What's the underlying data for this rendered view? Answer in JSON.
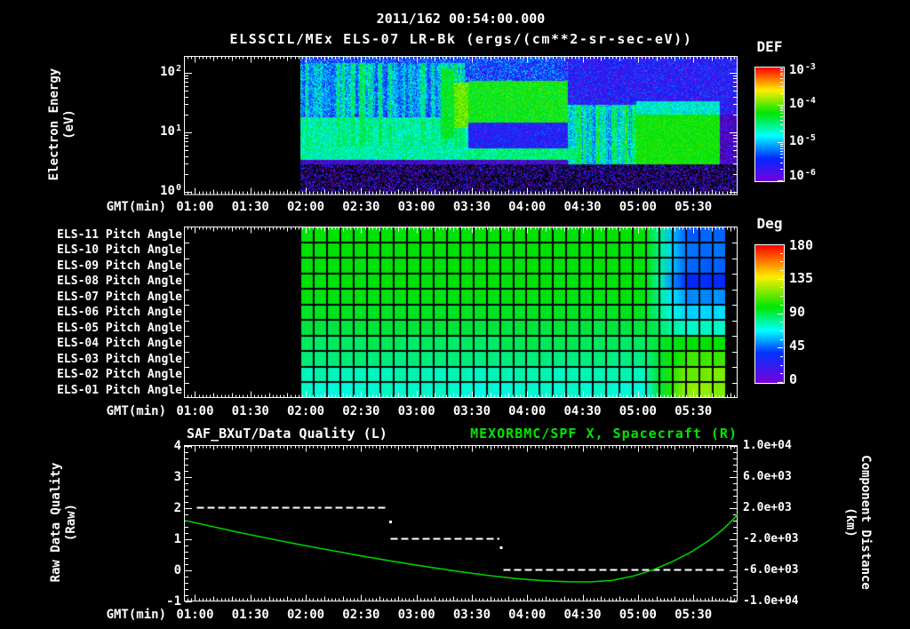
{
  "header": {
    "title_datetime": "2011/162 00:54:00.000",
    "title_instrument": "ELSSCIL/MEx ELS-07 LR-Bk  (ergs/(cm**2-sr-sec-eV))"
  },
  "time_axis": {
    "label": "GMT(min)",
    "start_minute": 54,
    "end_minute": 354,
    "tick_minutes": [
      60,
      90,
      120,
      150,
      180,
      210,
      240,
      270,
      300,
      330
    ],
    "tick_labels": [
      "01:00",
      "01:30",
      "02:00",
      "02:30",
      "03:00",
      "03:30",
      "04:00",
      "04:30",
      "05:00",
      "05:30"
    ]
  },
  "colors": {
    "background": "#000000",
    "foreground": "#ffffff",
    "series_green": "#00cc00",
    "title_green": "#00e600"
  },
  "chart_data": [
    {
      "type": "heatmap",
      "name": "electron-energy-spectrogram",
      "ylabel": "Electron Energy",
      "ylabel_units": "(eV)",
      "yscale": "log",
      "yticks": [
        {
          "base": "10",
          "exp": "2"
        },
        {
          "base": "10",
          "exp": "1"
        },
        {
          "base": "10",
          "exp": "0"
        }
      ],
      "energy_range_ev": [
        1,
        200
      ],
      "data_start_gmt": "01:57",
      "colorbar": {
        "title": "DEF",
        "units": "ergs/(cm**2-sr-sec-eV)",
        "tick_labels": [
          {
            "base": "10",
            "exp": "-3"
          },
          {
            "base": "10",
            "exp": "-4"
          },
          {
            "base": "10",
            "exp": "-5"
          },
          {
            "base": "10",
            "exp": "-6"
          }
        ],
        "log10_range": [
          -6,
          -3
        ]
      },
      "features": [
        {
          "name": "diffuse-fill",
          "t": [
            117,
            354
          ],
          "e": [
            3,
            200
          ],
          "log10_def": -5.9,
          "noise": 0.45
        },
        {
          "name": "high-energy-noise-early",
          "t": [
            117,
            262
          ],
          "e": [
            20,
            200
          ],
          "log10_def": -5.35,
          "noise": 0.55
        },
        {
          "name": "high-energy-noise-late",
          "t": [
            262,
            354
          ],
          "e": [
            20,
            200
          ],
          "log10_def": -5.6,
          "noise": 0.5
        },
        {
          "name": "vertical-streaks",
          "t": [
            117,
            206
          ],
          "e": [
            6,
            150
          ],
          "log10_def": -5.0,
          "noise": 0.5,
          "streaky": 1,
          "max": -4.35
        },
        {
          "name": "main-cyan-band",
          "t": [
            117,
            208
          ],
          "e": [
            3.5,
            18
          ],
          "log10_def": -4.65,
          "noise": 0.3
        },
        {
          "name": "green-column",
          "t": [
            193,
            200
          ],
          "e": [
            8,
            120
          ],
          "log10_def": -4.35,
          "noise": 0.3
        },
        {
          "name": "bright-green-column",
          "t": [
            200,
            208
          ],
          "e": [
            12,
            70
          ],
          "log10_def": -3.95,
          "noise": 0.25
        },
        {
          "name": "green-band",
          "t": [
            208,
            262
          ],
          "e": [
            15,
            75
          ],
          "log10_def": -4.25,
          "noise": 0.3
        },
        {
          "name": "blue-dropout",
          "t": [
            208,
            262
          ],
          "e": [
            5.5,
            15
          ],
          "log10_def": -5.55,
          "noise": 0.4
        },
        {
          "name": "cyan-line",
          "t": [
            208,
            268
          ],
          "e": [
            3.5,
            5.5
          ],
          "log10_def": -4.55,
          "noise": 0.25
        },
        {
          "name": "streaky-cyan-band",
          "t": [
            262,
            299
          ],
          "e": [
            3,
            30
          ],
          "log10_def": -4.7,
          "noise": 0.4,
          "streaky": 1
        },
        {
          "name": "bright-green-blob",
          "t": [
            299,
            344
          ],
          "e": [
            3,
            20
          ],
          "log10_def": -4.2,
          "noise": 0.2
        },
        {
          "name": "blob-cyan-top",
          "t": [
            299,
            344
          ],
          "e": [
            20,
            34
          ],
          "log10_def": -4.75,
          "noise": 0.3
        },
        {
          "name": "low-energy-speckle",
          "t": [
            117,
            354
          ],
          "e": [
            1,
            3.2
          ],
          "log10_def": -5.85,
          "noise": 0.6,
          "sparse": 0.5
        }
      ]
    },
    {
      "type": "heatmap",
      "name": "pitch-angle-grid",
      "colorbar": {
        "title": "Deg",
        "ticks": [
          180,
          135,
          90,
          45,
          0
        ],
        "range": [
          0,
          180
        ]
      },
      "data_start_gmt": "01:57",
      "data_end_gmt": "05:48",
      "columns": 32,
      "transition_cols": [
        26,
        27
      ],
      "rows": [
        {
          "label": "ELS-11 Pitch Angle",
          "base_deg": 107,
          "edge_deg": 48
        },
        {
          "label": "ELS-10 Pitch Angle",
          "base_deg": 106,
          "edge_deg": 50
        },
        {
          "label": "ELS-09 Pitch Angle",
          "base_deg": 106,
          "edge_deg": 48
        },
        {
          "label": "ELS-08 Pitch Angle",
          "base_deg": 105,
          "edge_deg": 40
        },
        {
          "label": "ELS-07 Pitch Angle",
          "base_deg": 104,
          "edge_deg": 55
        },
        {
          "label": "ELS-06 Pitch Angle",
          "base_deg": 99,
          "edge_deg": 66
        },
        {
          "label": "ELS-05 Pitch Angle",
          "base_deg": 94,
          "edge_deg": 78
        },
        {
          "label": "ELS-04 Pitch Angle",
          "base_deg": 90,
          "edge_deg": 108
        },
        {
          "label": "ELS-03 Pitch Angle",
          "base_deg": 86,
          "edge_deg": 117
        },
        {
          "label": "ELS-02 Pitch Angle",
          "base_deg": 80,
          "edge_deg": 124
        },
        {
          "label": "ELS-01 Pitch Angle",
          "base_deg": 77,
          "edge_deg": 128
        }
      ]
    },
    {
      "type": "line",
      "name": "quality-and-distance",
      "series": [
        {
          "name": "SAF_BXuT/Data Quality (L)",
          "axis": "left",
          "color": "#ffffff",
          "style": "dashed",
          "axis_label": "Raw Data Quality",
          "axis_label_units": "(Raw)",
          "yticks": [
            4,
            3,
            2,
            1,
            0,
            -1
          ],
          "ylim": [
            -1,
            4
          ],
          "segments": [
            {
              "value": 2,
              "t0": 61,
              "t1": 165
            },
            {
              "value": 1,
              "t0": 166,
              "t1": 225
            },
            {
              "value": 0,
              "t0": 227,
              "t1": 347
            }
          ],
          "transition_dots": [
            {
              "t": 166,
              "value": 1.55
            },
            {
              "t": 226,
              "value": 0.71
            }
          ]
        },
        {
          "name": "MEXORBMC/SPF X, Spacecraft (R)",
          "axis": "right",
          "color": "#00cc00",
          "style": "solid",
          "axis_label": "Component Distance",
          "axis_label_units": "(km)",
          "ytick_labels": [
            "1.0e+04",
            "6.0e+03",
            "2.0e+03",
            "-2.0e+03",
            "-6.0e+03",
            "-1.0e+04"
          ],
          "ytick_values": [
            10000,
            6000,
            2000,
            -2000,
            -6000,
            -10000
          ],
          "ylim": [
            -10000,
            10000
          ],
          "points_t_km": [
            [
              55,
              340
            ],
            [
              70,
              -460
            ],
            [
              85,
              -1230
            ],
            [
              100,
              -1960
            ],
            [
              115,
              -2660
            ],
            [
              130,
              -3330
            ],
            [
              145,
              -3980
            ],
            [
              160,
              -4600
            ],
            [
              175,
              -5190
            ],
            [
              190,
              -5750
            ],
            [
              205,
              -6270
            ],
            [
              220,
              -6740
            ],
            [
              235,
              -7130
            ],
            [
              250,
              -7400
            ],
            [
              262,
              -7520
            ],
            [
              274,
              -7540
            ],
            [
              286,
              -7350
            ],
            [
              298,
              -6750
            ],
            [
              308,
              -6000
            ],
            [
              318,
              -5000
            ],
            [
              328,
              -3800
            ],
            [
              338,
              -2300
            ],
            [
              346,
              -800
            ],
            [
              352,
              600
            ],
            [
              354,
              1150
            ]
          ]
        }
      ]
    }
  ]
}
